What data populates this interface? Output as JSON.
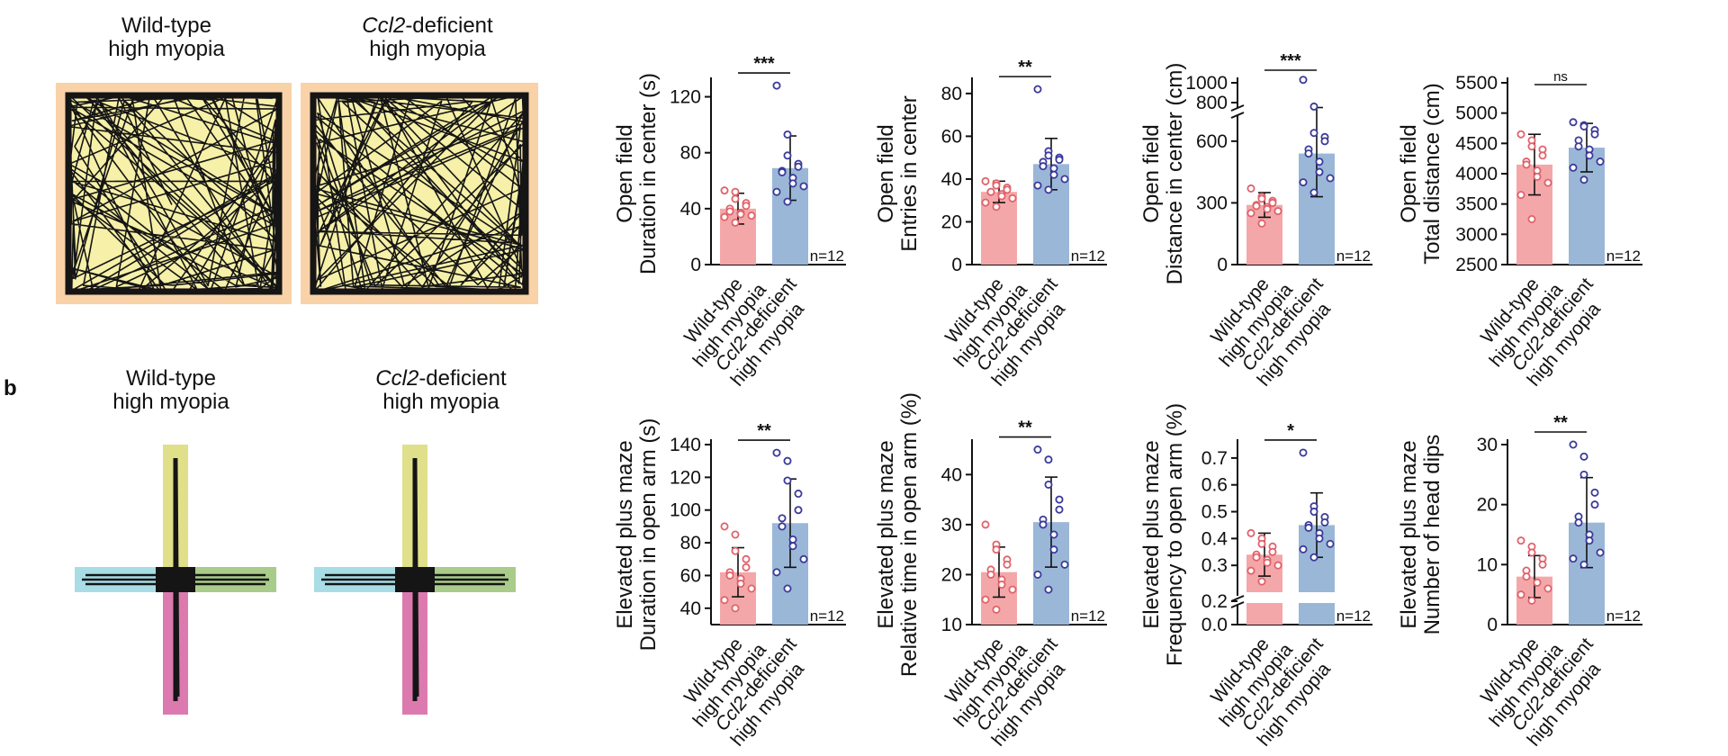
{
  "panel_label": "b",
  "group_labels": {
    "wt_line1": "Wild-type",
    "wt_line2": "high myopia",
    "ko_gene": "Ccl2",
    "ko_suffix": "-deficient",
    "ko_line2": "high myopia"
  },
  "colors": {
    "wt_bar": "#f4a7a9",
    "wt_dot": "#e0626a",
    "ko_bar": "#9bb7d8",
    "ko_dot": "#3a3a9a",
    "arena_border": "#f9d2a8",
    "arena_center": "#f6f0a8",
    "maze_top": "#e0e08a",
    "maze_left": "#a8dde6",
    "maze_right": "#a9cc8a",
    "maze_bottom": "#dc7ab0",
    "maze_center": "#e9b98a"
  },
  "chart_data": [
    {
      "type": "bar",
      "row": 0,
      "col": 0,
      "ylabel_1": "Open field",
      "ylabel_2": "Duration in center (s)",
      "categories": [
        "Wild-type high myopia",
        "Ccl2-deficient high myopia"
      ],
      "means": [
        40,
        69
      ],
      "sd": [
        11,
        23
      ],
      "ylim": [
        0,
        130
      ],
      "yticks": [
        0,
        40,
        80,
        120
      ],
      "significance": "***",
      "n_label": "n=12",
      "points": [
        [
          53,
          52,
          47,
          44,
          42,
          40,
          38,
          37,
          36,
          35,
          34,
          30
        ],
        [
          128,
          93,
          78,
          72,
          70,
          67,
          66,
          62,
          58,
          56,
          52,
          45
        ]
      ]
    },
    {
      "type": "bar",
      "row": 0,
      "col": 1,
      "ylabel_1": "Open field",
      "ylabel_2": "Entries in center",
      "categories": [
        "Wild-type high myopia",
        "Ccl2-deficient high myopia"
      ],
      "means": [
        34,
        47
      ],
      "sd": [
        5,
        12
      ],
      "ylim": [
        0,
        85
      ],
      "yticks": [
        0,
        20,
        40,
        60,
        80
      ],
      "significance": "**",
      "n_label": "n=12",
      "points": [
        [
          39,
          38,
          37,
          36,
          35,
          34,
          34,
          33,
          32,
          31,
          29,
          27
        ],
        [
          82,
          53,
          51,
          50,
          49,
          48,
          46,
          45,
          42,
          40,
          37,
          35
        ]
      ]
    },
    {
      "type": "bar",
      "row": 0,
      "col": 2,
      "broken": true,
      "ylabel_1": "Open field",
      "ylabel_2": "Distance in center (cm)",
      "categories": [
        "Wild-type high myopia",
        "Ccl2-deficient high myopia"
      ],
      "means": [
        290,
        540
      ],
      "sd": [
        60,
        210
      ],
      "yticks": [
        0,
        300,
        600,
        800,
        1000
      ],
      "significance": "***",
      "n_label": "n=12",
      "points": [
        [
          370,
          330,
          320,
          310,
          300,
          290,
          285,
          280,
          270,
          260,
          250,
          200
        ],
        [
          1030,
          760,
          640,
          620,
          600,
          560,
          540,
          500,
          450,
          420,
          400,
          350
        ]
      ]
    },
    {
      "type": "bar",
      "row": 0,
      "col": 3,
      "ylabel_1": "Open field",
      "ylabel_2": "Total distance (cm)",
      "categories": [
        "Wild-type high myopia",
        "Ccl2-deficient high myopia"
      ],
      "means": [
        4150,
        4430
      ],
      "sd": [
        500,
        400
      ],
      "ylim": [
        2500,
        5500
      ],
      "yticks": [
        2500,
        3000,
        3500,
        4000,
        4500,
        5000,
        5500
      ],
      "significance": "ns",
      "n_label": "n=12",
      "points": [
        [
          4650,
          4550,
          4450,
          4400,
          4300,
          4200,
          4150,
          4050,
          3950,
          3850,
          3650,
          3250
        ],
        [
          4850,
          4800,
          4780,
          4720,
          4650,
          4550,
          4450,
          4400,
          4300,
          4200,
          4100,
          3900
        ]
      ]
    },
    {
      "type": "bar",
      "row": 1,
      "col": 0,
      "ylabel_1": "Elevated plus maze",
      "ylabel_2": "Duration in open arm (s)",
      "categories": [
        "Wild-type high myopia",
        "Ccl2-deficient high myopia"
      ],
      "means": [
        62,
        92
      ],
      "sd": [
        15,
        27
      ],
      "ylim": [
        30,
        140
      ],
      "yticks": [
        40,
        60,
        80,
        100,
        120,
        140
      ],
      "significance": "**",
      "n_label": "n=12",
      "points": [
        [
          90,
          85,
          75,
          70,
          65,
          62,
          60,
          58,
          55,
          52,
          45,
          40
        ],
        [
          135,
          130,
          118,
          110,
          100,
          95,
          90,
          82,
          78,
          70,
          62,
          52
        ]
      ]
    },
    {
      "type": "bar",
      "row": 1,
      "col": 1,
      "ylabel_1": "Elevated plus maze",
      "ylabel_2": "Relative time in open arm (%)",
      "categories": [
        "Wild-type high myopia",
        "Ccl2-deficient high myopia"
      ],
      "means": [
        20.5,
        30.5
      ],
      "sd": [
        5,
        9
      ],
      "ylim": [
        10,
        46
      ],
      "yticks": [
        10,
        20,
        30,
        40
      ],
      "significance": "**",
      "n_label": "n=12",
      "points": [
        [
          30,
          26,
          25,
          23,
          22,
          21,
          20,
          19,
          18,
          17,
          15,
          13
        ],
        [
          45,
          43,
          38,
          35,
          33,
          31,
          30,
          28,
          25,
          22,
          20,
          17
        ]
      ]
    },
    {
      "type": "bar",
      "row": 1,
      "col": 2,
      "broken": true,
      "ylabel_1": "Elevated plus maze",
      "ylabel_2": "Frequency to open arm (%)",
      "categories": [
        "Wild-type high myopia",
        "Ccl2-deficient high myopia"
      ],
      "means": [
        0.34,
        0.45
      ],
      "sd": [
        0.08,
        0.12
      ],
      "yticks": [
        0.0,
        0.2,
        0.3,
        0.4,
        0.5,
        0.6,
        0.7
      ],
      "significance": "*",
      "n_label": "n=12",
      "points": [
        [
          0.42,
          0.4,
          0.38,
          0.37,
          0.35,
          0.34,
          0.33,
          0.32,
          0.31,
          0.3,
          0.28,
          0.24
        ],
        [
          0.72,
          0.52,
          0.5,
          0.48,
          0.46,
          0.45,
          0.44,
          0.42,
          0.4,
          0.38,
          0.36,
          0.33
        ]
      ]
    },
    {
      "type": "bar",
      "row": 1,
      "col": 3,
      "ylabel_1": "Elevated plus maze",
      "ylabel_2": "Number of head dips",
      "categories": [
        "Wild-type high myopia",
        "Ccl2-deficient high myopia"
      ],
      "means": [
        8,
        17
      ],
      "sd": [
        3.5,
        7.5
      ],
      "ylim": [
        0,
        30
      ],
      "yticks": [
        0,
        10,
        20,
        30
      ],
      "significance": "**",
      "n_label": "n=12",
      "points": [
        [
          14,
          13,
          12,
          11,
          10,
          9,
          8,
          7,
          7,
          6,
          5,
          4
        ],
        [
          30,
          28,
          25,
          22,
          20,
          18,
          17,
          15,
          14,
          12,
          11,
          10
        ]
      ]
    }
  ]
}
